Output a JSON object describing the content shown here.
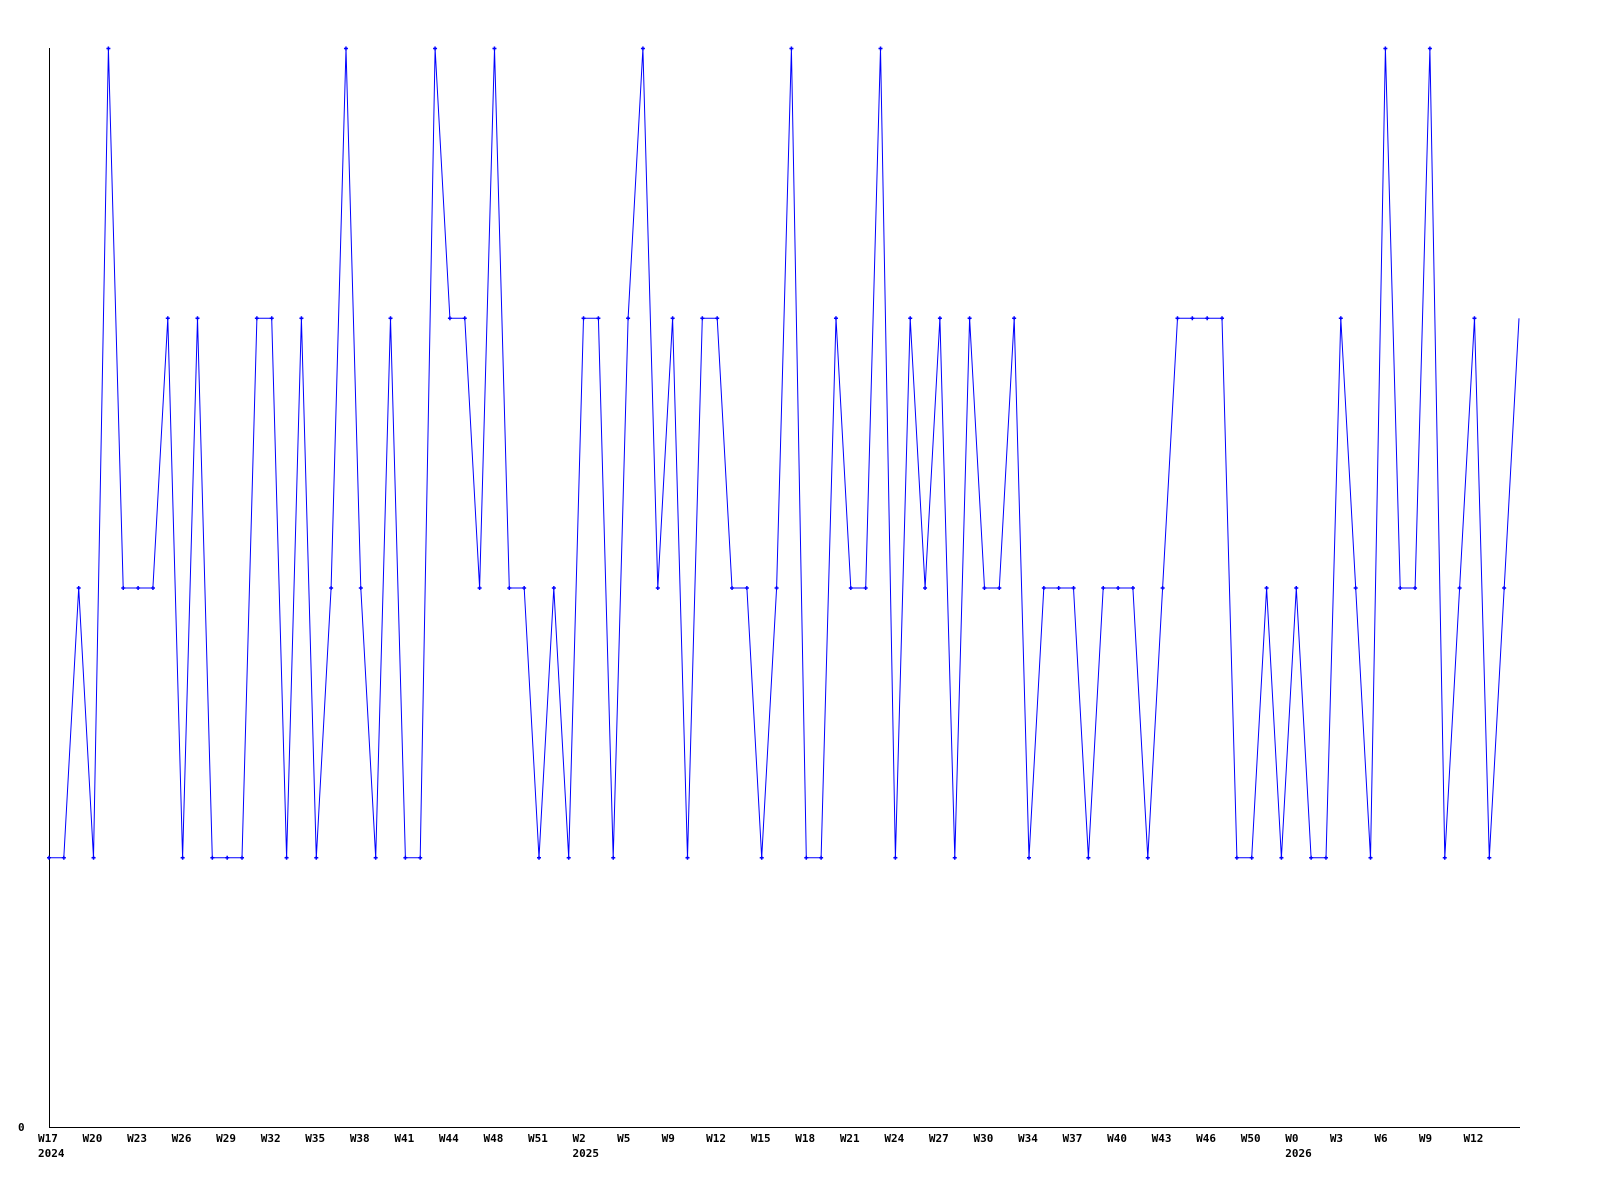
{
  "chart_data": {
    "type": "line",
    "title": "",
    "xlabel": "",
    "ylabel": "",
    "ylim": [
      0,
      4
    ],
    "y_ticks": [
      {
        "value": 0,
        "label": "0"
      }
    ],
    "grid": false,
    "line_color": "#0000ff",
    "axis_color": "#000000",
    "values": [
      1,
      1,
      2,
      1,
      4,
      2,
      2,
      2,
      3,
      1,
      3,
      1,
      1,
      1,
      3,
      3,
      1,
      3,
      1,
      2,
      4,
      2,
      1,
      3,
      1,
      1,
      4,
      3,
      3,
      2,
      4,
      2,
      2,
      1,
      2,
      1,
      3,
      3,
      1,
      3,
      4,
      2,
      3,
      1,
      3,
      3,
      2,
      2,
      1,
      2,
      4,
      1,
      1,
      3,
      2,
      2,
      4,
      1,
      3,
      2,
      3,
      1,
      3,
      2,
      2,
      3,
      1,
      2,
      2,
      2,
      1,
      2,
      2,
      2,
      1,
      2,
      3,
      3,
      3,
      3,
      1,
      1,
      2,
      1,
      2,
      1,
      1,
      3,
      2,
      1,
      4,
      2,
      2,
      4,
      1,
      2,
      3,
      1,
      2,
      3
    ],
    "x_ticks": [
      {
        "index": 0,
        "label": "W17"
      },
      {
        "index": 3,
        "label": "W20"
      },
      {
        "index": 6,
        "label": "W23"
      },
      {
        "index": 9,
        "label": "W26"
      },
      {
        "index": 12,
        "label": "W29"
      },
      {
        "index": 15,
        "label": "W32"
      },
      {
        "index": 18,
        "label": "W35"
      },
      {
        "index": 21,
        "label": "W38"
      },
      {
        "index": 24,
        "label": "W41"
      },
      {
        "index": 27,
        "label": "W44"
      },
      {
        "index": 30,
        "label": "W48"
      },
      {
        "index": 33,
        "label": "W51"
      },
      {
        "index": 36,
        "label": "W2"
      },
      {
        "index": 39,
        "label": "W5"
      },
      {
        "index": 42,
        "label": "W9"
      },
      {
        "index": 45,
        "label": "W12"
      },
      {
        "index": 48,
        "label": "W15"
      },
      {
        "index": 51,
        "label": "W18"
      },
      {
        "index": 54,
        "label": "W21"
      },
      {
        "index": 57,
        "label": "W24"
      },
      {
        "index": 60,
        "label": "W27"
      },
      {
        "index": 63,
        "label": "W30"
      },
      {
        "index": 66,
        "label": "W34"
      },
      {
        "index": 69,
        "label": "W37"
      },
      {
        "index": 72,
        "label": "W40"
      },
      {
        "index": 75,
        "label": "W43"
      },
      {
        "index": 78,
        "label": "W46"
      },
      {
        "index": 81,
        "label": "W50"
      },
      {
        "index": 84,
        "label": "W0"
      },
      {
        "index": 87,
        "label": "W3"
      },
      {
        "index": 90,
        "label": "W6"
      },
      {
        "index": 93,
        "label": "W9"
      },
      {
        "index": 96,
        "label": "W12"
      }
    ],
    "year_labels": [
      {
        "index": 0,
        "label": "2024"
      },
      {
        "index": 36,
        "label": "2025"
      },
      {
        "index": 84,
        "label": "2026"
      }
    ]
  }
}
